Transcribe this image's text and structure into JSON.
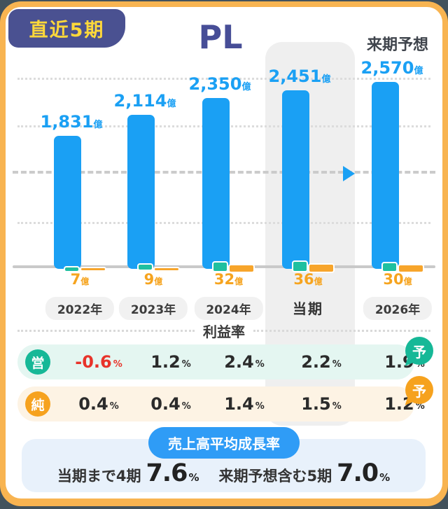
{
  "header": {
    "badge_label": "直近5期",
    "title": "PL",
    "forecast_note": "来期予想"
  },
  "chart_data": {
    "type": "bar",
    "title": "PL",
    "unit": "億",
    "categories": [
      "2022年",
      "2023年",
      "2024年",
      "当期",
      "2026年"
    ],
    "series": [
      {
        "name": "売上高",
        "values": [
          1831,
          2114,
          2350,
          2451,
          2570
        ],
        "labels": [
          "1,831",
          "2,114",
          "2,350",
          "2,451",
          "2,570"
        ],
        "color": "#1aa0f4"
      },
      {
        "name": "純利益",
        "values": [
          7,
          9,
          32,
          36,
          30
        ],
        "labels": [
          "7",
          "9",
          "32",
          "36",
          "30"
        ],
        "color": "#f6a41f"
      }
    ],
    "operating_margin_pct": [
      -0.6,
      1.2,
      2.4,
      2.2,
      1.9
    ],
    "net_margin_pct": [
      0.4,
      0.4,
      1.4,
      1.5,
      1.2
    ],
    "highlight_index": 3,
    "forecast_index": 4,
    "ylim": [
      0,
      2570
    ],
    "legend_position": "none",
    "grid": "dotted-horizontal"
  },
  "profit_section": {
    "title": "利益率",
    "unit": "%",
    "forecast_badge": "予",
    "rows": [
      {
        "badge": "営",
        "name": "operating-margin",
        "values": [
          "-0.6",
          "1.2",
          "2.4",
          "2.2",
          "1.9"
        ],
        "negatives": [
          true,
          false,
          false,
          false,
          false
        ]
      },
      {
        "badge": "純",
        "name": "net-margin",
        "values": [
          "0.4",
          "0.4",
          "1.4",
          "1.5",
          "1.2"
        ],
        "negatives": [
          false,
          false,
          false,
          false,
          false
        ]
      }
    ]
  },
  "growth_section": {
    "title": "売上高平均成長率",
    "items": [
      {
        "label": "当期まで4期",
        "value": "7.6",
        "unit": "%"
      },
      {
        "label": "来期予想含む5期",
        "value": "7.0",
        "unit": "%"
      }
    ]
  },
  "colors": {
    "card_border": "#f8b451",
    "background_behind_card": "#42525c",
    "badge_bg": "#4a5191",
    "badge_text": "#ffd83a",
    "title_text": "#474e97",
    "bar_blue": "#1aa0f4",
    "mini_green": "#1fc0a0",
    "mini_orange": "#f7a52b",
    "net_label_orange": "#f6a41f",
    "highlight_band": "#efefef",
    "operating_row_bg": "#e4f6f1",
    "operating_badge": "#16b897",
    "net_row_bg": "#fdf3e4",
    "net_badge": "#f6a21e",
    "negative_value": "#e8332a",
    "growth_panel_bg": "#e8f1fb",
    "growth_pill_bg": "#2f9cf6"
  }
}
